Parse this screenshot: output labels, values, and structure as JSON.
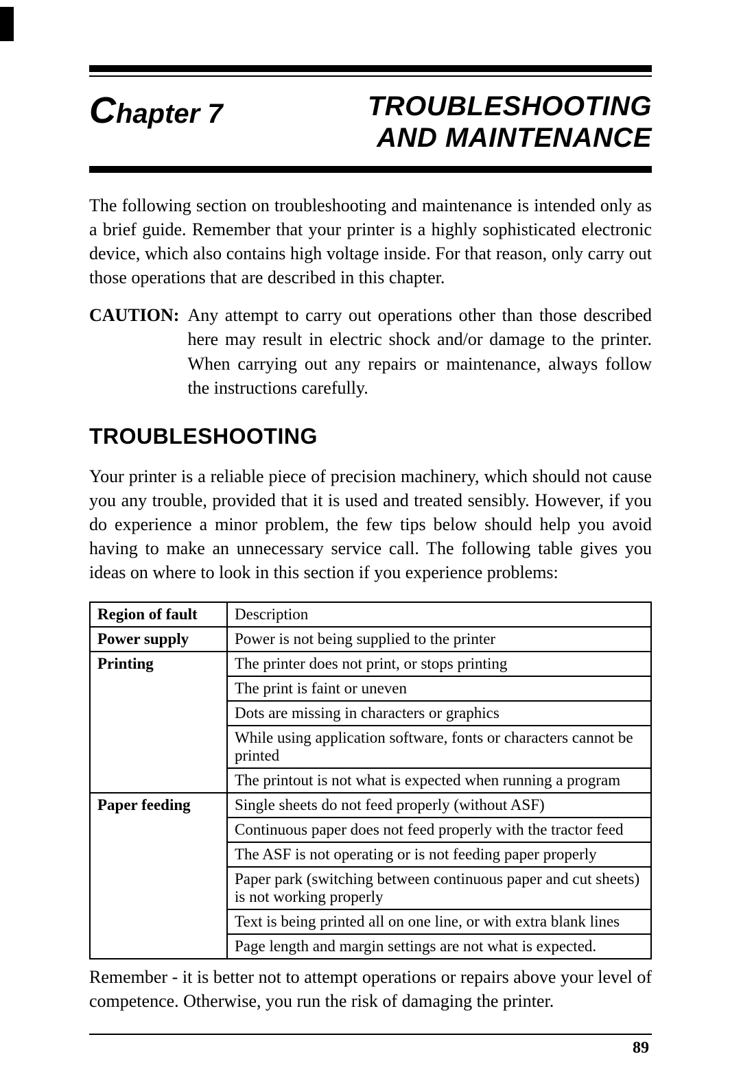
{
  "chapter": {
    "label_prefix": "C",
    "label_rest": "hapter 7",
    "title_line1": "TROUBLESHOOTING",
    "title_line2": "AND MAINTENANCE"
  },
  "intro": "The following section on troubleshooting and maintenance is intended only as a brief guide. Remember that your printer is a highly sophisticated electronic device, which also contains high voltage inside. For that reason, only carry out those operations that are described in this chapter.",
  "caution": {
    "label": "CAUTION:",
    "text": "Any attempt to carry out operations other than those described here may result in electric shock and/or damage to the printer. When carrying out any repairs or maintenance, always follow the instructions carefully."
  },
  "section": {
    "heading": "TROUBLESHOOTING",
    "para": "Your printer is a reliable piece of precision machinery, which should not cause you any trouble, provided that it is used and treated sensibly. However, if you do experience a minor problem, the few tips below should help you avoid having to make an unnecessary service call. The following table gives you ideas on where to look in this section if you experience problems:"
  },
  "table": {
    "header": {
      "col1": "Region of fault",
      "col2": "Description"
    },
    "rows": [
      {
        "region": "Power supply",
        "desc": "Power is not being supplied to the printer",
        "rowspan": 1
      },
      {
        "region": "Printing",
        "desc": "The printer does not print, or stops printing",
        "rowspan": 5
      },
      {
        "region": "",
        "desc": "The print is faint or uneven"
      },
      {
        "region": "",
        "desc": "Dots are missing in characters or graphics"
      },
      {
        "region": "",
        "desc": "While using application software, fonts or characters cannot be printed"
      },
      {
        "region": "",
        "desc": "The printout is not what is expected when running a program"
      },
      {
        "region": "Paper feeding",
        "desc": "Single sheets do not feed properly (without ASF)",
        "rowspan": 6
      },
      {
        "region": "",
        "desc": "Continuous paper does not feed properly with the tractor feed"
      },
      {
        "region": "",
        "desc": "The ASF is not operating or is not feeding paper properly"
      },
      {
        "region": "",
        "desc": "Paper park (switching between continuous paper and cut sheets) is not working properly"
      },
      {
        "region": "",
        "desc": "Text is being printed all on one line, or with extra blank lines"
      },
      {
        "region": "",
        "desc": "Page length and margin settings are not what is expected."
      }
    ]
  },
  "closing": "Remember - it is better not to attempt operations or repairs above your level of competence. Otherwise, you run the risk of damaging the printer.",
  "page_number": "89"
}
